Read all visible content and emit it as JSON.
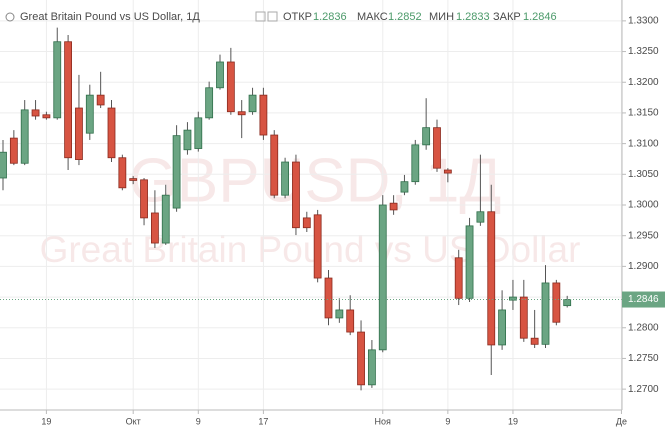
{
  "chart_data": {
    "type": "candlestick",
    "title": "Great Britain Pound vs US Dollar, 1Д",
    "header_labels": {
      "open": "ОТКР",
      "high": "МАКС",
      "low": "МИН",
      "close": "ЗАКР"
    },
    "watermark": {
      "symbol": "GBPUSD, 1Д",
      "description": "Great Britain Pound vs US Dollar"
    },
    "categories": [
      null,
      null,
      null,
      null,
      "19",
      null,
      null,
      null,
      null,
      null,
      null,
      null,
      "Окт",
      null,
      null,
      null,
      null,
      null,
      "9",
      null,
      null,
      null,
      null,
      null,
      "17",
      null,
      null,
      null,
      null,
      null,
      null,
      null,
      null,
      null,
      null,
      "Ноя",
      null,
      null,
      null,
      null,
      null,
      "9",
      null,
      null,
      null,
      null,
      null,
      "19",
      null,
      null,
      null,
      null,
      null,
      null,
      null,
      null,
      null,
      "Де"
    ],
    "open": [
      1.3044,
      1.3109,
      1.3068,
      1.3155,
      1.3147,
      1.3142,
      1.3266,
      1.3158,
      1.3117,
      1.3179,
      1.3158,
      1.3077,
      1.3043,
      1.3041,
      1.2987,
      1.2938,
      1.2995,
      1.309,
      1.3092,
      1.3142,
      1.3191,
      1.3233,
      1.3152,
      1.3152,
      1.3179,
      1.3114,
      1.3016,
      1.307,
      1.2979,
      1.2984,
      1.2881,
      1.2816,
      1.2829,
      1.2793,
      1.2707,
      1.2764,
      1.3003,
      1.3021,
      1.3038,
      1.3098,
      1.3126,
      1.3057,
      1.2914,
      1.2848,
      1.2972,
      1.2989,
      1.2772,
      1.2845,
      1.285,
      1.2783,
      1.2773,
      1.2873,
      1.2836,
      null,
      null,
      null,
      null,
      null
    ],
    "high": [
      1.3106,
      1.3122,
      1.3171,
      1.3171,
      1.3152,
      1.3289,
      1.3277,
      1.3212,
      1.3196,
      1.3217,
      1.3171,
      1.3082,
      1.3047,
      1.3044,
      1.3024,
      1.3033,
      1.313,
      1.3135,
      1.3152,
      1.3201,
      1.3245,
      1.3256,
      1.3171,
      1.3191,
      1.3191,
      1.3122,
      1.3077,
      1.3082,
      1.2989,
      1.2992,
      1.2894,
      1.2848,
      1.2853,
      1.2812,
      1.278,
      1.3016,
      1.3016,
      1.3049,
      1.3106,
      1.3174,
      1.3139,
      1.306,
      1.2927,
      1.2979,
      1.3082,
      1.3033,
      1.2861,
      1.2878,
      1.2878,
      1.2829,
      1.2902,
      1.2878,
      1.2852,
      null,
      null,
      null,
      null,
      null
    ],
    "low": [
      1.3024,
      1.3065,
      1.3065,
      1.3139,
      1.3139,
      1.3139,
      1.3057,
      1.3065,
      1.3106,
      1.3158,
      1.307,
      1.3024,
      1.3034,
      1.2967,
      1.293,
      1.2935,
      1.2989,
      1.3082,
      1.3087,
      1.3139,
      1.3188,
      1.3147,
      1.3109,
      1.3147,
      1.3106,
      1.3011,
      1.3011,
      1.2951,
      1.2956,
      1.2874,
      1.2804,
      1.2808,
      1.2788,
      1.2698,
      1.2702,
      1.276,
      1.2984,
      1.3016,
      1.3033,
      1.309,
      1.3054,
      1.3037,
      1.2837,
      1.2842,
      1.2966,
      1.2723,
      1.2764,
      1.2829,
      1.2777,
      1.2767,
      1.2767,
      1.2804,
      1.2833,
      null,
      null,
      null,
      null,
      null
    ],
    "close": [
      1.3086,
      1.3068,
      1.3155,
      1.3145,
      1.3142,
      1.3266,
      1.3077,
      1.3074,
      1.3179,
      1.3163,
      1.3077,
      1.3028,
      1.304,
      1.2979,
      1.2938,
      1.3016,
      1.3113,
      1.3122,
      1.3142,
      1.3191,
      1.3233,
      1.3152,
      1.3147,
      1.3179,
      1.3114,
      1.3016,
      1.307,
      1.2963,
      1.2963,
      1.2881,
      1.2816,
      1.2829,
      1.2793,
      1.2707,
      1.2764,
      1.3,
      1.2992,
      1.3038,
      1.3098,
      1.3126,
      1.306,
      1.3052,
      1.2848,
      1.2966,
      1.2989,
      1.2772,
      1.2829,
      1.285,
      1.2783,
      1.2773,
      1.2873,
      1.2809,
      1.2846,
      null,
      null,
      null,
      null,
      null
    ],
    "up_color": "#6ba583",
    "down_color": "#d75442",
    "ylim": [
      1.2666,
      1.3334
    ],
    "yticks": [
      {
        "value": 1.27,
        "label": "1.2700"
      },
      {
        "value": 1.275,
        "label": "1.2750"
      },
      {
        "value": 1.28,
        "label": "1.2800"
      },
      {
        "value": 1.285,
        "label": "1.2850"
      },
      {
        "value": 1.29,
        "label": "1.2900"
      },
      {
        "value": 1.295,
        "label": "1.2950"
      },
      {
        "value": 1.3,
        "label": "1.3000"
      },
      {
        "value": 1.305,
        "label": "1.3050"
      },
      {
        "value": 1.31,
        "label": "1.3100"
      },
      {
        "value": 1.315,
        "label": "1.3150"
      },
      {
        "value": 1.32,
        "label": "1.3200"
      },
      {
        "value": 1.325,
        "label": "1.3250"
      },
      {
        "value": 1.33,
        "label": "1.3300"
      }
    ],
    "grid": true
  }
}
